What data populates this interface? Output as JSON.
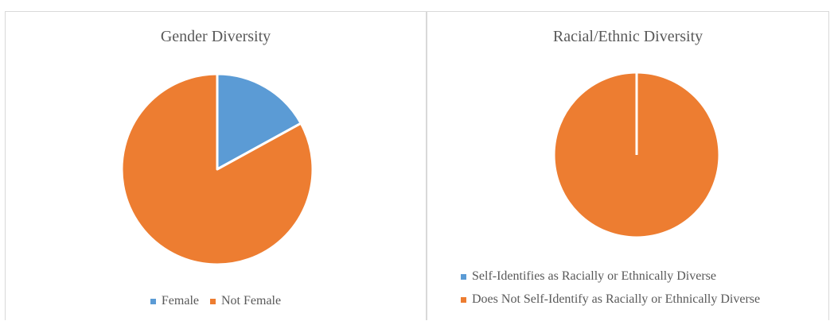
{
  "colors": {
    "female": "#5b9bd5",
    "not_female": "#ed7d31",
    "diverse": "#5b9bd5",
    "not_diverse": "#ed7d31"
  },
  "chart_data": [
    {
      "type": "pie",
      "title": "Gender Diversity",
      "labels": [
        "Female",
        "Not Female"
      ],
      "values": [
        17,
        83
      ],
      "legend": "bottom"
    },
    {
      "type": "pie",
      "title": "Racial/Ethnic Diversity",
      "labels": [
        "Self-Identifies as Racially or Ethnically Diverse",
        "Does Not Self-Identify as Racially or Ethnically Diverse"
      ],
      "values": [
        0,
        100
      ],
      "legend": "bottom"
    }
  ]
}
